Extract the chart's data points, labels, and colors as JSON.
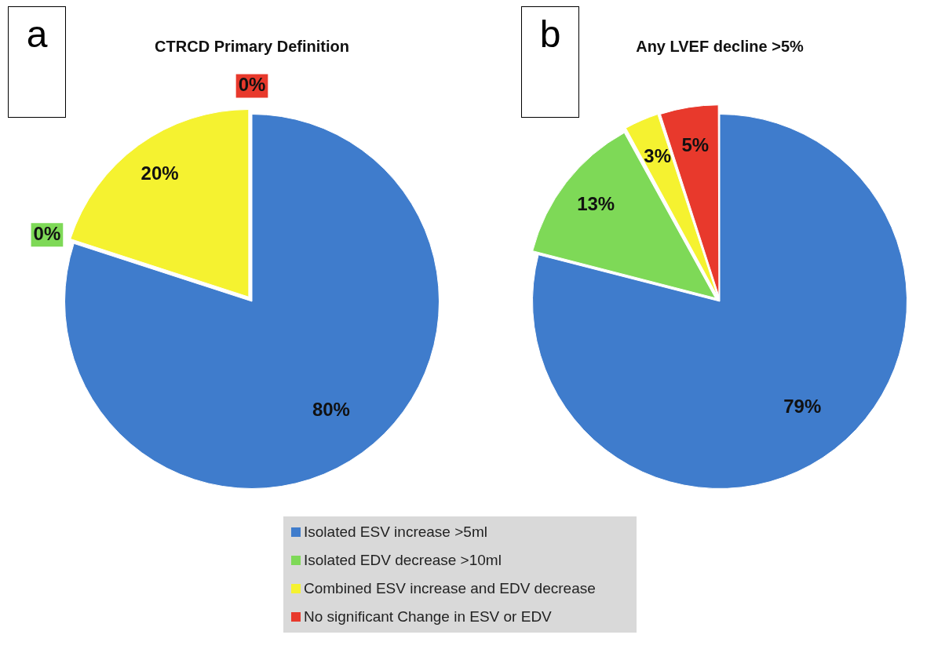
{
  "chart_data": [
    {
      "type": "pie",
      "title": "CTRCD Primary Definition",
      "annotations": [
        "a"
      ],
      "categories": [
        "Isolated ESV increase >5ml",
        "Isolated EDV decrease >10ml",
        "Combined ESV increase and EDV decrease",
        "No significant Change in ESV or EDV"
      ],
      "values": [
        80,
        0,
        20,
        0
      ],
      "value_labels": [
        "80%",
        "0%",
        "20%",
        "0%"
      ],
      "colors": [
        "#3f7ccc",
        "#7ed957",
        "#f5f230",
        "#e8392c"
      ],
      "legend": "bottom"
    },
    {
      "type": "pie",
      "title": "Any LVEF decline >5%",
      "annotations": [
        "b"
      ],
      "categories": [
        null,
        null,
        null,
        null
      ],
      "values": [
        79,
        13,
        3,
        5
      ],
      "value_labels": [
        "79%",
        "13%",
        "3%",
        "5%"
      ],
      "colors": [
        "#3f7ccc",
        "#7ed957",
        "#f5f230",
        "#e8392c"
      ]
    }
  ]
}
